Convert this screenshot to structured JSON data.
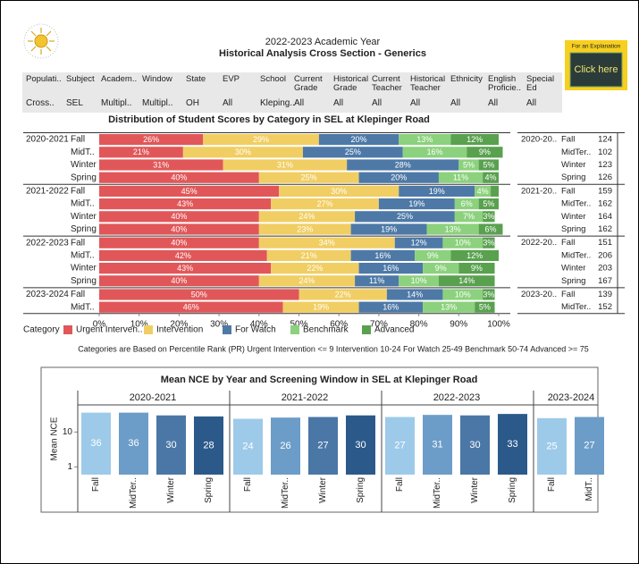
{
  "header": {
    "line1": "2022-2023 Academic Year",
    "line2": "Historical Analysis Cross Section - Generics"
  },
  "explanation": {
    "caption": "For an Explanation",
    "button": "Click here"
  },
  "filters": [
    {
      "label": "Populati..",
      "value": "Cross.."
    },
    {
      "label": "Subject",
      "value": "SEL"
    },
    {
      "label": "Academ..",
      "value": "Multipl.."
    },
    {
      "label": "Window",
      "value": "Multipl.."
    },
    {
      "label": "State",
      "value": "OH"
    },
    {
      "label": "EVP",
      "value": "All"
    },
    {
      "label": "School",
      "value": "Kleping.."
    },
    {
      "label": "Current Grade",
      "value": "All"
    },
    {
      "label": "Historical Grade",
      "value": "All"
    },
    {
      "label": "Current Teacher",
      "value": "All"
    },
    {
      "label": "Historical Teacher",
      "value": "All"
    },
    {
      "label": "Ethnicity",
      "value": "All"
    },
    {
      "label": "English Proficie..",
      "value": "All"
    },
    {
      "label": "Special Ed",
      "value": "All"
    }
  ],
  "count_table": {
    "year_labels": [
      "2020-20..",
      null,
      null,
      null,
      "2021-20..",
      null,
      null,
      null,
      "2022-20..",
      null,
      null,
      null,
      "2023-20..",
      null
    ],
    "windows": [
      "Fall",
      "MidTer..",
      "Winter",
      "Spring",
      "Fall",
      "MidTer..",
      "Winter",
      "Spring",
      "Fall",
      "MidTer..",
      "Winter",
      "Spring",
      "Fall",
      "MidTer.."
    ],
    "counts": [
      124,
      102,
      123,
      126,
      159,
      162,
      164,
      162,
      151,
      206,
      203,
      167,
      139,
      152
    ]
  },
  "chart_data": [
    {
      "type": "stackedbar",
      "title": "Distribution of Student Scores by Category in SEL at Klepinger Road",
      "year_labels": [
        "2020-2021",
        null,
        null,
        null,
        "2021-2022",
        null,
        null,
        null,
        "2022-2023",
        null,
        null,
        null,
        "2023-2024",
        null
      ],
      "categories": [
        "Fall",
        "MidT..",
        "Winter",
        "Spring",
        "Fall",
        "MidT..",
        "Winter",
        "Spring",
        "Fall",
        "MidT..",
        "Winter",
        "Spring",
        "Fall",
        "MidT.."
      ],
      "series": [
        {
          "name": "Urgent Interven..",
          "color": "#e15759",
          "values": [
            26,
            21,
            31,
            40,
            45,
            43,
            40,
            40,
            40,
            42,
            43,
            40,
            50,
            46
          ],
          "value_labels": [
            "26%",
            "21%",
            "31%",
            "40%",
            "45%",
            "43%",
            "40%",
            "40%",
            "40%",
            "42%",
            "43%",
            "40%",
            "50%",
            "46%"
          ]
        },
        {
          "name": "Intervention",
          "color": "#f1ce63",
          "values": [
            29,
            30,
            31,
            25,
            30,
            27,
            24,
            23,
            34,
            21,
            22,
            24,
            22,
            19
          ],
          "value_labels": [
            "29%",
            "30%",
            "31%",
            "25%",
            "30%",
            "27%",
            "24%",
            "23%",
            "34%",
            "21%",
            "22%",
            "24%",
            "22%",
            "19%"
          ]
        },
        {
          "name": "For Watch",
          "color": "#4e79a7",
          "values": [
            20,
            25,
            28,
            20,
            19,
            19,
            25,
            19,
            12,
            16,
            16,
            11,
            14,
            16
          ],
          "value_labels": [
            "20%",
            "25%",
            "28%",
            "20%",
            "19%",
            "19%",
            "25%",
            "19%",
            "12%",
            "16%",
            "16%",
            "11%",
            "14%",
            "16%"
          ]
        },
        {
          "name": "Benchmark",
          "color": "#8cd17d",
          "values": [
            13,
            16,
            5,
            11,
            4,
            6,
            7,
            13,
            10,
            9,
            9,
            10,
            10,
            13
          ],
          "value_labels": [
            "13%",
            "16%",
            "5%",
            "11%",
            "4%",
            "6%",
            "7%",
            "13%",
            "10%",
            "9%",
            "9%",
            "10%",
            "10%",
            "13%"
          ]
        },
        {
          "name": "Advanced",
          "color": "#59a14f",
          "values": [
            12,
            9,
            5,
            4,
            2,
            5,
            3,
            6,
            3,
            12,
            9,
            14,
            3,
            5
          ],
          "value_labels": [
            "12%",
            "9%",
            "5%",
            "4%",
            null,
            "5%",
            "3%",
            "6%",
            "3%",
            "12%",
            "9%",
            "14%",
            "3%",
            "5%"
          ]
        }
      ],
      "xlim": [
        0,
        100
      ],
      "xticks": [
        {
          "value": 0,
          "label": "0%"
        },
        {
          "value": 10,
          "label": "10%"
        },
        {
          "value": 20,
          "label": "20%"
        },
        {
          "value": 30,
          "label": "30%"
        },
        {
          "value": 40,
          "label": "40%"
        },
        {
          "value": 50,
          "label": "50%"
        },
        {
          "value": 60,
          "label": "60%"
        },
        {
          "value": 70,
          "label": "70%"
        },
        {
          "value": 80,
          "label": "80%"
        },
        {
          "value": 90,
          "label": "90%"
        },
        {
          "value": 100,
          "label": "100%"
        }
      ],
      "legend_title": "Category",
      "note": "Categories are Based on Percentile Rank (PR)  Urgent Intervention <= 9 Intervention 10-24  For Watch 25-49 Benchmark 50-74 Advanced >= 75"
    },
    {
      "type": "bar",
      "title": "Mean NCE by Year and Screening Window in SEL at Klepinger Road",
      "ylabel": "Mean NCE",
      "log_scale": true,
      "ylim": [
        0.6,
        60
      ],
      "yticks": [
        1,
        10
      ],
      "colors": [
        "#9ecae9",
        "#6c9dc8",
        "#4a77a6",
        "#2b5a8a"
      ],
      "panels": [
        {
          "label": "2020-2021",
          "categories": [
            "Fall",
            "MidTer..",
            "Winter",
            "Spring"
          ],
          "values": [
            36,
            36,
            30,
            28
          ]
        },
        {
          "label": "2021-2022",
          "categories": [
            "Fall",
            "MidTer..",
            "Winter",
            "Spring"
          ],
          "values": [
            24,
            26,
            27,
            30
          ]
        },
        {
          "label": "2022-2023",
          "categories": [
            "Fall",
            "MidTer..",
            "Winter",
            "Spring"
          ],
          "values": [
            27,
            31,
            30,
            33
          ]
        },
        {
          "label": "2023-2024",
          "categories": [
            "Fall",
            "MidT.."
          ],
          "values": [
            25,
            27
          ]
        }
      ]
    }
  ]
}
